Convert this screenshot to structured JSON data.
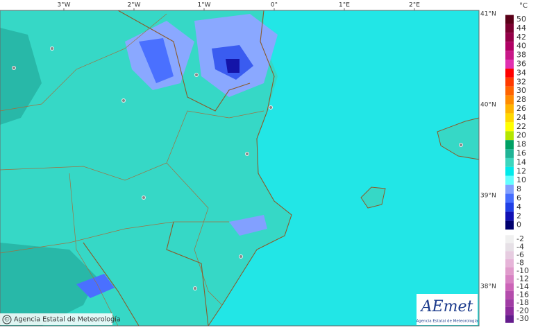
{
  "map": {
    "longitude_labels": [
      "3°W",
      "2°W",
      "1°W",
      "0°",
      "1°E",
      "2°E"
    ],
    "latitude_labels": [
      "41°N",
      "40°N",
      "39°N",
      "38°N"
    ]
  },
  "legend": {
    "unit": "°C",
    "positive": [
      {
        "label": "50",
        "color": "#5a0018"
      },
      {
        "label": "44",
        "color": "#7a0030"
      },
      {
        "label": "42",
        "color": "#940048"
      },
      {
        "label": "40",
        "color": "#b00064"
      },
      {
        "label": "38",
        "color": "#c81888"
      },
      {
        "label": "36",
        "color": "#e030b0"
      },
      {
        "label": "34",
        "color": "#ff0000"
      },
      {
        "label": "32",
        "color": "#ff3a00"
      },
      {
        "label": "30",
        "color": "#ff6400"
      },
      {
        "label": "28",
        "color": "#ff8c00"
      },
      {
        "label": "26",
        "color": "#ffb400"
      },
      {
        "label": "24",
        "color": "#ffd800"
      },
      {
        "label": "22",
        "color": "#ffff00"
      },
      {
        "label": "20",
        "color": "#b4e600"
      },
      {
        "label": "18",
        "color": "#00a064"
      },
      {
        "label": "16",
        "color": "#20b496"
      },
      {
        "label": "14",
        "color": "#3cd6be"
      },
      {
        "label": "12",
        "color": "#00eaea"
      },
      {
        "label": "10",
        "color": "#64ffff"
      },
      {
        "label": "8",
        "color": "#82a0ff"
      },
      {
        "label": "6",
        "color": "#466eff"
      },
      {
        "label": "4",
        "color": "#2040e6"
      },
      {
        "label": "2",
        "color": "#1010b4"
      },
      {
        "label": "0",
        "color": "#00006e"
      }
    ],
    "negative": [
      {
        "label": "-2",
        "color": "#f0f0f0"
      },
      {
        "label": "-4",
        "color": "#e6e0e6"
      },
      {
        "label": "-6",
        "color": "#e6cce0"
      },
      {
        "label": "-8",
        "color": "#e6b4d8"
      },
      {
        "label": "-10",
        "color": "#e09ccc"
      },
      {
        "label": "-12",
        "color": "#d882c4"
      },
      {
        "label": "-14",
        "color": "#cc64b8"
      },
      {
        "label": "-16",
        "color": "#b44cac"
      },
      {
        "label": "-18",
        "color": "#a03ca4"
      },
      {
        "label": "-20",
        "color": "#8c2c9c"
      },
      {
        "label": "-30",
        "color": "#641c8c"
      }
    ]
  },
  "footer": {
    "copyright": "©",
    "credit": "Agencia Estatal de Meteorología"
  },
  "logo": {
    "name": "AEmet",
    "subtitle": "Agencia Estatal de Meteorología"
  }
}
